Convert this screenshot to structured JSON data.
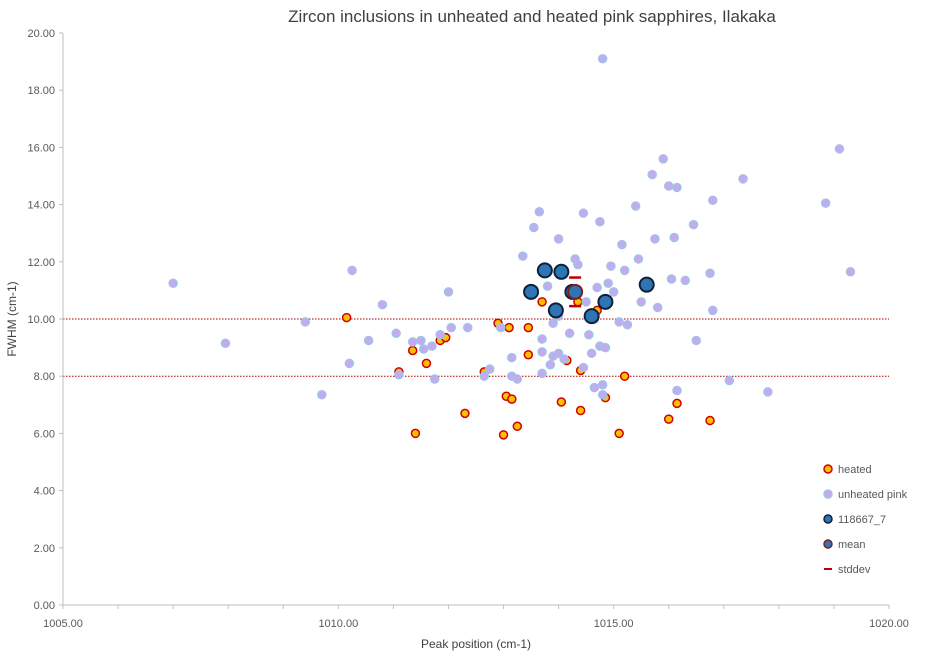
{
  "chart_data": {
    "type": "scatter",
    "title": "Zircon inclusions  in unheated and heated pink sapphires, Ilakaka",
    "xlabel": "Peak position (cm-1)",
    "ylabel": "FWHM (cm-1)",
    "xlim": [
      1005,
      1020
    ],
    "ylim": [
      0,
      20
    ],
    "x_ticks": [
      1005,
      1010,
      1015,
      1020
    ],
    "x_tick_labels": [
      "1005.00",
      "1010.00",
      "1015.00",
      "1020.00"
    ],
    "y_ticks": [
      0,
      2,
      4,
      6,
      8,
      10,
      12,
      14,
      16,
      18,
      20
    ],
    "y_tick_labels": [
      "0.00",
      "2.00",
      "4.00",
      "6.00",
      "8.00",
      "10.00",
      "12.00",
      "14.00",
      "16.00",
      "18.00",
      "20.00"
    ],
    "reference_lines": [
      10.0,
      8.0
    ],
    "legend_position": "right-bottom",
    "colors": {
      "heated_fill": "#FFC000",
      "heated_edge": "#D00000",
      "unheated_fill": "#C8A8F0",
      "unheated_edge": "#9DC3E6",
      "sample_fill": "#2E75B6",
      "sample_edge": "#0D2137",
      "mean_fill": "#2E75B6",
      "mean_edge": "#7B2020",
      "stddev": "#C00000",
      "reference": "#A00000"
    },
    "series": [
      {
        "name": "heated",
        "marker": "heated",
        "points": [
          [
            1010.15,
            10.05
          ],
          [
            1011.1,
            8.15
          ],
          [
            1011.35,
            8.9
          ],
          [
            1011.6,
            8.45
          ],
          [
            1011.85,
            9.25
          ],
          [
            1011.95,
            9.35
          ],
          [
            1011.4,
            6.0
          ],
          [
            1012.3,
            6.7
          ],
          [
            1012.65,
            8.15
          ],
          [
            1012.9,
            9.85
          ],
          [
            1013.1,
            9.7
          ],
          [
            1013.05,
            7.3
          ],
          [
            1013.15,
            7.2
          ],
          [
            1013.25,
            6.25
          ],
          [
            1013.0,
            5.95
          ],
          [
            1013.45,
            9.7
          ],
          [
            1013.45,
            8.75
          ],
          [
            1013.7,
            10.6
          ],
          [
            1014.05,
            7.1
          ],
          [
            1014.15,
            8.55
          ],
          [
            1014.35,
            10.6
          ],
          [
            1014.4,
            8.2
          ],
          [
            1014.4,
            6.8
          ],
          [
            1014.85,
            7.25
          ],
          [
            1014.7,
            10.3
          ],
          [
            1015.1,
            6.0
          ],
          [
            1015.2,
            8.0
          ],
          [
            1016.0,
            6.5
          ],
          [
            1016.15,
            7.05
          ],
          [
            1016.75,
            6.45
          ]
        ]
      },
      {
        "name": "unheated pink",
        "marker": "unheated",
        "points": [
          [
            1007.0,
            11.25
          ],
          [
            1007.95,
            9.15
          ],
          [
            1009.4,
            9.9
          ],
          [
            1009.7,
            7.35
          ],
          [
            1010.2,
            8.45
          ],
          [
            1010.25,
            11.7
          ],
          [
            1010.55,
            9.25
          ],
          [
            1010.8,
            10.5
          ],
          [
            1011.05,
            9.5
          ],
          [
            1011.1,
            8.05
          ],
          [
            1011.35,
            9.2
          ],
          [
            1011.5,
            9.25
          ],
          [
            1011.55,
            8.95
          ],
          [
            1011.7,
            9.05
          ],
          [
            1011.75,
            7.9
          ],
          [
            1011.85,
            9.45
          ],
          [
            1012.0,
            10.95
          ],
          [
            1012.05,
            9.7
          ],
          [
            1012.35,
            9.7
          ],
          [
            1012.65,
            8.0
          ],
          [
            1012.75,
            8.25
          ],
          [
            1012.95,
            9.7
          ],
          [
            1013.15,
            8.65
          ],
          [
            1013.15,
            8.0
          ],
          [
            1013.25,
            7.9
          ],
          [
            1013.35,
            12.2
          ],
          [
            1013.55,
            13.2
          ],
          [
            1013.65,
            13.75
          ],
          [
            1013.7,
            9.3
          ],
          [
            1013.7,
            8.85
          ],
          [
            1013.7,
            8.1
          ],
          [
            1013.8,
            11.15
          ],
          [
            1013.85,
            8.4
          ],
          [
            1013.9,
            9.85
          ],
          [
            1013.9,
            8.7
          ],
          [
            1014.0,
            12.8
          ],
          [
            1014.0,
            10.1
          ],
          [
            1014.0,
            8.8
          ],
          [
            1014.1,
            8.6
          ],
          [
            1014.2,
            9.5
          ],
          [
            1014.3,
            12.1
          ],
          [
            1014.35,
            11.9
          ],
          [
            1014.45,
            13.7
          ],
          [
            1014.45,
            8.3
          ],
          [
            1014.5,
            10.6
          ],
          [
            1014.55,
            9.45
          ],
          [
            1014.6,
            8.8
          ],
          [
            1014.65,
            7.6
          ],
          [
            1014.65,
            10.0
          ],
          [
            1014.7,
            11.1
          ],
          [
            1014.75,
            13.4
          ],
          [
            1014.75,
            9.05
          ],
          [
            1014.8,
            19.1
          ],
          [
            1014.8,
            7.7
          ],
          [
            1014.8,
            7.35
          ],
          [
            1014.85,
            9.0
          ],
          [
            1014.9,
            11.25
          ],
          [
            1014.95,
            11.85
          ],
          [
            1015.0,
            10.95
          ],
          [
            1015.1,
            9.9
          ],
          [
            1015.15,
            12.6
          ],
          [
            1015.2,
            11.7
          ],
          [
            1015.25,
            9.8
          ],
          [
            1015.4,
            13.95
          ],
          [
            1015.45,
            12.1
          ],
          [
            1015.5,
            10.6
          ],
          [
            1015.6,
            11.25
          ],
          [
            1015.7,
            15.05
          ],
          [
            1015.75,
            12.8
          ],
          [
            1015.8,
            10.4
          ],
          [
            1015.9,
            15.6
          ],
          [
            1016.0,
            14.65
          ],
          [
            1016.05,
            11.4
          ],
          [
            1016.1,
            12.85
          ],
          [
            1016.15,
            14.6
          ],
          [
            1016.15,
            7.5
          ],
          [
            1016.3,
            11.35
          ],
          [
            1016.45,
            13.3
          ],
          [
            1016.5,
            9.25
          ],
          [
            1016.75,
            11.6
          ],
          [
            1016.8,
            14.15
          ],
          [
            1016.8,
            10.3
          ],
          [
            1017.1,
            7.85
          ],
          [
            1017.35,
            14.9
          ],
          [
            1017.8,
            7.45
          ],
          [
            1018.85,
            14.05
          ],
          [
            1019.1,
            15.95
          ],
          [
            1019.3,
            11.65
          ]
        ]
      },
      {
        "name": "118667_7",
        "marker": "sample",
        "points": [
          [
            1013.5,
            10.95
          ],
          [
            1013.75,
            11.7
          ],
          [
            1013.95,
            10.3
          ],
          [
            1014.05,
            11.65
          ],
          [
            1014.25,
            10.95
          ],
          [
            1014.6,
            10.1
          ],
          [
            1014.85,
            10.6
          ],
          [
            1015.6,
            11.2
          ]
        ]
      },
      {
        "name": "mean",
        "marker": "mean",
        "points": [
          [
            1014.3,
            10.95
          ]
        ]
      }
    ],
    "stddev": {
      "name": "stddev",
      "x": 1014.3,
      "values": [
        11.45,
        10.45
      ]
    },
    "legend": [
      {
        "label": "heated",
        "marker": "heated"
      },
      {
        "label": "unheated pink",
        "marker": "unheated"
      },
      {
        "label": "118667_7",
        "marker": "sample"
      },
      {
        "label": "mean",
        "marker": "mean"
      },
      {
        "label": "stddev",
        "marker": "stddev"
      }
    ]
  }
}
